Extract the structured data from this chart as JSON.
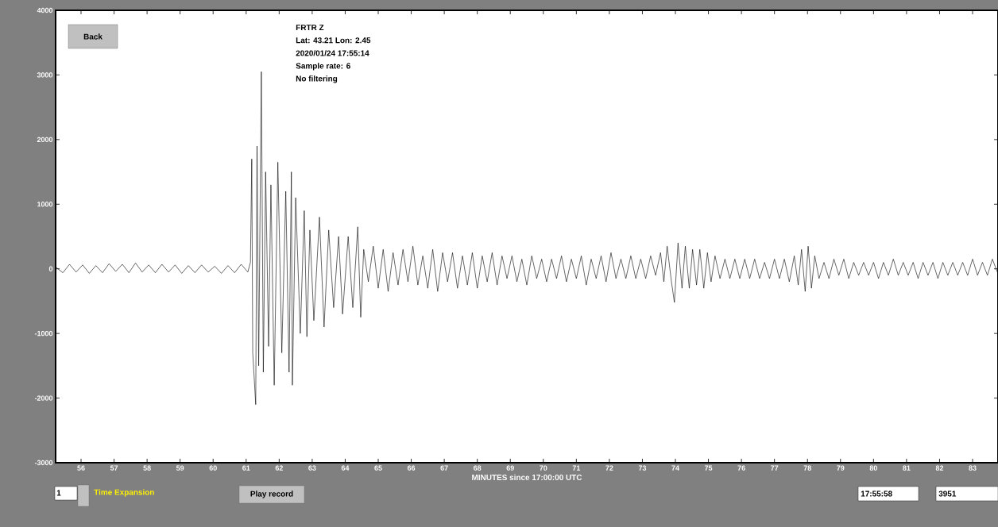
{
  "chart_data": {
    "type": "line",
    "xlabel": "MINUTES since 17:00:00 UTC",
    "x": [
      55.25,
      55.45,
      55.65,
      55.85,
      56.05,
      56.25,
      56.45,
      56.65,
      56.85,
      57.05,
      57.25,
      57.45,
      57.65,
      57.85,
      58.05,
      58.25,
      58.45,
      58.65,
      58.85,
      59.05,
      59.25,
      59.45,
      59.65,
      59.85,
      60.05,
      60.25,
      60.45,
      60.65,
      60.85,
      61.05,
      61.13,
      61.17,
      61.2,
      61.29,
      61.33,
      61.38,
      61.46,
      61.52,
      61.59,
      61.68,
      61.75,
      61.85,
      61.96,
      62.08,
      62.2,
      62.3,
      62.37,
      62.4,
      62.5,
      62.64,
      62.76,
      62.84,
      62.93,
      63.05,
      63.22,
      63.36,
      63.5,
      63.65,
      63.8,
      63.92,
      64.09,
      64.23,
      64.38,
      64.47,
      64.56,
      64.7,
      64.85,
      65.0,
      65.15,
      65.3,
      65.45,
      65.6,
      65.75,
      65.9,
      66.05,
      66.2,
      66.35,
      66.5,
      66.65,
      66.8,
      66.95,
      67.1,
      67.25,
      67.4,
      67.55,
      67.7,
      67.85,
      68.0,
      68.15,
      68.3,
      68.45,
      68.6,
      68.75,
      68.9,
      69.05,
      69.2,
      69.35,
      69.5,
      69.65,
      69.8,
      69.95,
      70.1,
      70.25,
      70.4,
      70.55,
      70.7,
      70.85,
      71.0,
      71.15,
      71.3,
      71.45,
      71.6,
      71.75,
      71.9,
      72.05,
      72.2,
      72.35,
      72.5,
      72.65,
      72.8,
      72.95,
      73.1,
      73.25,
      73.4,
      73.55,
      73.65,
      73.75,
      73.88,
      73.97,
      74.08,
      74.2,
      74.3,
      74.42,
      74.52,
      74.64,
      74.74,
      74.86,
      74.97,
      75.08,
      75.2,
      75.35,
      75.5,
      75.65,
      75.8,
      75.95,
      76.1,
      76.25,
      76.4,
      76.55,
      76.7,
      76.85,
      77.0,
      77.15,
      77.3,
      77.45,
      77.6,
      77.72,
      77.82,
      77.93,
      78.02,
      78.12,
      78.22,
      78.35,
      78.5,
      78.65,
      78.8,
      78.95,
      79.1,
      79.25,
      79.4,
      79.55,
      79.7,
      79.85,
      80.0,
      80.15,
      80.3,
      80.45,
      80.6,
      80.75,
      80.9,
      81.05,
      81.2,
      81.35,
      81.5,
      81.65,
      81.8,
      81.95,
      82.1,
      82.25,
      82.4,
      82.55,
      82.7,
      82.85,
      83.0,
      83.15,
      83.3,
      83.45,
      83.6,
      83.75
    ],
    "series": [
      {
        "color": "#000000",
        "values": [
          20,
          -60,
          70,
          -50,
          60,
          -70,
          50,
          -60,
          80,
          -40,
          70,
          -60,
          90,
          -50,
          60,
          -60,
          70,
          -50,
          60,
          -70,
          50,
          -60,
          60,
          -50,
          40,
          -70,
          50,
          -60,
          70,
          -50,
          100,
          1700,
          -1300,
          -2100,
          1900,
          -1500,
          3050,
          -1600,
          1500,
          -1200,
          1300,
          -1800,
          1650,
          -1300,
          1200,
          -1600,
          1500,
          -1800,
          1100,
          -1000,
          900,
          -1050,
          600,
          -800,
          800,
          -900,
          600,
          -600,
          500,
          -700,
          500,
          -600,
          650,
          -750,
          300,
          -200,
          350,
          -300,
          300,
          -350,
          250,
          -250,
          300,
          -200,
          350,
          -250,
          200,
          -300,
          300,
          -350,
          250,
          -200,
          250,
          -300,
          200,
          -250,
          250,
          -300,
          200,
          -200,
          250,
          -250,
          200,
          -150,
          200,
          -200,
          150,
          -250,
          200,
          -150,
          150,
          -200,
          150,
          -150,
          200,
          -200,
          150,
          -150,
          200,
          -250,
          150,
          -150,
          200,
          -200,
          250,
          -150,
          150,
          -150,
          200,
          -150,
          150,
          -150,
          200,
          -100,
          250,
          -200,
          350,
          -200,
          -520,
          400,
          -300,
          350,
          -300,
          300,
          -250,
          300,
          -300,
          250,
          -200,
          200,
          -150,
          150,
          -150,
          150,
          -150,
          150,
          -150,
          150,
          -150,
          100,
          -150,
          150,
          -150,
          150,
          -200,
          200,
          -250,
          300,
          -350,
          350,
          -300,
          200,
          -150,
          100,
          -150,
          150,
          -100,
          150,
          -150,
          100,
          -100,
          100,
          -100,
          100,
          -150,
          100,
          -100,
          150,
          -100,
          100,
          -100,
          100,
          -150,
          100,
          -100,
          100,
          -150,
          100,
          -100,
          100,
          -100,
          100,
          -100,
          150,
          -100,
          100,
          -100,
          150,
          -50
        ]
      }
    ],
    "xlim": [
      55.23,
      83.77
    ],
    "ylim": [
      -3000,
      4000
    ],
    "xticks": [
      56,
      57,
      58,
      59,
      60,
      61,
      62,
      63,
      64,
      65,
      66,
      67,
      68,
      69,
      70,
      71,
      72,
      73,
      74,
      75,
      76,
      77,
      78,
      79,
      80,
      81,
      82,
      83
    ],
    "yticks": [
      -3000,
      -2000,
      -1000,
      0,
      1000,
      2000,
      3000,
      4000
    ],
    "marker": "none",
    "line_style": "solid",
    "annotations": [
      "FRTR  Z",
      "Lat: 43.21 Lon: 2.45",
      "2020/01/24 17:55:14",
      "Sample rate: 6",
      "No filtering",
      "Back",
      "1",
      "Time Expansion",
      "Play record",
      "17:55:58",
      "3951"
    ]
  }
}
